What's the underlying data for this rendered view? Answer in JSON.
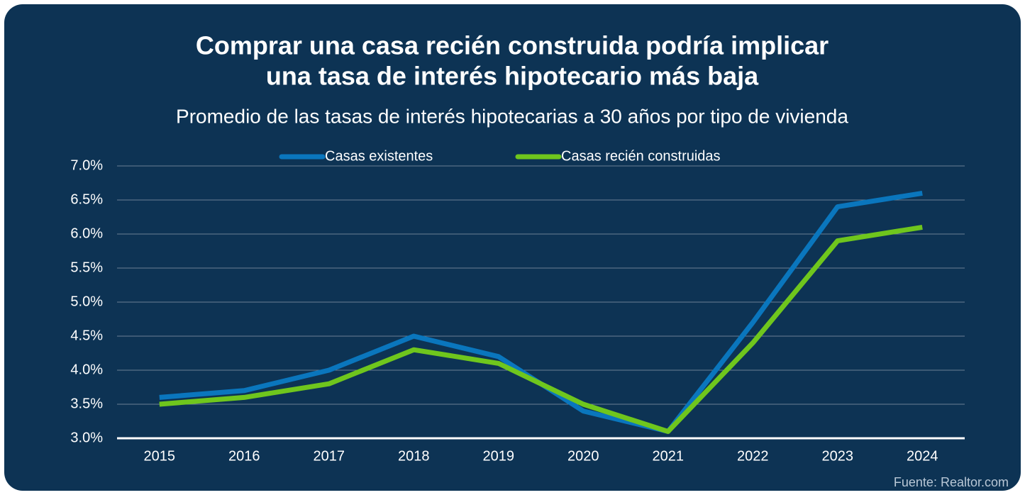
{
  "chart_data": {
    "type": "line",
    "title": [
      "Comprar una casa recién construida podría implicar",
      "una tasa de interés hipotecario más baja"
    ],
    "subtitle": "Promedio de las tasas de interés hipotecarias a 30 años por tipo de vivienda",
    "categories": [
      "2015",
      "2016",
      "2017",
      "2018",
      "2019",
      "2020",
      "2021",
      "2022",
      "2023",
      "2024"
    ],
    "series": [
      {
        "name": "Casas existentes",
        "color": "#0a76bd",
        "values": [
          3.6,
          3.7,
          4.0,
          4.5,
          4.2,
          3.4,
          3.1,
          4.7,
          6.4,
          6.6
        ]
      },
      {
        "name": "Casas recién construidas",
        "color": "#6fc61d",
        "values": [
          3.5,
          3.6,
          3.8,
          4.3,
          4.1,
          3.5,
          3.1,
          4.4,
          5.9,
          6.1
        ]
      }
    ],
    "ylim": [
      3.0,
      7.0
    ],
    "yticks": [
      {
        "value": 3.0,
        "label": "3.0%"
      },
      {
        "value": 3.5,
        "label": "3.5%"
      },
      {
        "value": 4.0,
        "label": "4.0%"
      },
      {
        "value": 4.5,
        "label": "4.5%"
      },
      {
        "value": 5.0,
        "label": "5.0%"
      },
      {
        "value": 5.5,
        "label": "5.5%"
      },
      {
        "value": 6.0,
        "label": "6.0%"
      },
      {
        "value": 6.5,
        "label": "6.5%"
      },
      {
        "value": 7.0,
        "label": "7.0%"
      }
    ],
    "grid": true,
    "legend": "top",
    "source": "Fuente: Realtor.com"
  }
}
